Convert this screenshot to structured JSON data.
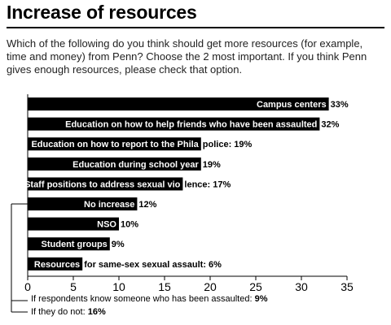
{
  "header": {
    "title": "Increase of resources",
    "question": "Which of the following do you think should get more resources (for example, time and money) from Penn? Choose the 2 most important. If you think Penn gives enough resources, please check that option."
  },
  "chart_data": {
    "type": "bar",
    "orientation": "horizontal",
    "categories": [
      "Campus centers",
      "Education on how to help friends who have been assaulted",
      "Education on how to report to the Phila police",
      "Education during school year",
      "Staff positions to address sexual violence",
      "No increase",
      "NSO",
      "Student groups",
      "Resources for same-sex sexual assault"
    ],
    "values": [
      33,
      32,
      19,
      19,
      17,
      12,
      10,
      9,
      6
    ],
    "value_labels": [
      "33%",
      "32%",
      "19%",
      "19%",
      "17%",
      "12%",
      "10%",
      "9%",
      "6%"
    ],
    "bar_texts": [
      {
        "inside": "Campus centers",
        "outside": "33%"
      },
      {
        "inside": "Education on how to help friends who have been assaulted",
        "outside": "32%"
      },
      {
        "inside": "Education on how to report to the Phila",
        "outside": "police: 19%"
      },
      {
        "inside": "Education during school year",
        "outside": "19%"
      },
      {
        "inside": "Staff positions to address sexual vio",
        "outside": "lence: 17%"
      },
      {
        "inside": "No increase",
        "outside": "12%"
      },
      {
        "inside": "NSO",
        "outside": "10%"
      },
      {
        "inside": "Student groups",
        "outside": "9%"
      },
      {
        "inside": "Resources",
        "outside": "for same-sex sexual assault: 6%"
      }
    ],
    "xlim": [
      0,
      35
    ],
    "xticks": [
      0,
      5,
      10,
      15,
      20,
      25,
      30,
      35
    ],
    "bar_color": "#000000",
    "grid": false,
    "annotation": {
      "category": "No increase",
      "lines": [
        {
          "text": "If respondents know someone who has been assaulted:",
          "value": "9%"
        },
        {
          "text": "If they do not:",
          "value": "16%"
        }
      ]
    }
  }
}
